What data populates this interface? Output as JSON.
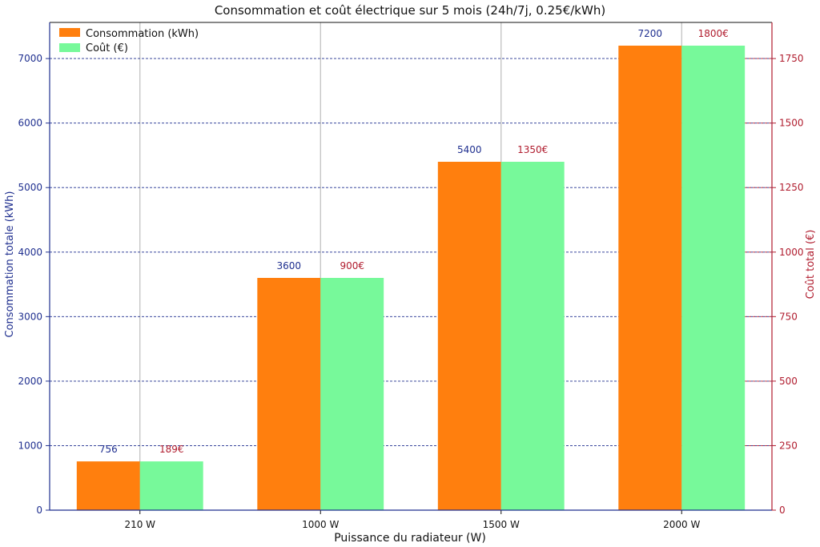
{
  "chart_data": {
    "type": "bar",
    "title": "Consommation et coût électrique sur 5 mois (24h/7j, 0.25€/kWh)",
    "xlabel": "Puissance du radiateur (W)",
    "ylabel_left": "Consommation totale (kWh)",
    "ylabel_right": "Coût total (€)",
    "categories": [
      "210 W",
      "1000 W",
      "1500 W",
      "2000 W"
    ],
    "series": [
      {
        "name": "Consommation (kWh)",
        "axis": "left",
        "color": "#ff7f0e",
        "values": [
          756,
          3600,
          5400,
          7200
        ],
        "labels": [
          "756",
          "3600",
          "5400",
          "7200"
        ]
      },
      {
        "name": "Coût (€)",
        "axis": "right",
        "color": "#77f99a",
        "values": [
          189,
          900,
          1350,
          1800
        ],
        "labels": [
          "189€",
          "900€",
          "1350€",
          "1800€"
        ]
      }
    ],
    "ylim_left": [
      0,
      7560
    ],
    "ylim_right": [
      0,
      1890
    ],
    "yticks_left": [
      "0",
      "1000",
      "2000",
      "3000",
      "4000",
      "5000",
      "6000",
      "7000"
    ],
    "yticks_right": [
      "0",
      "250",
      "500",
      "750",
      "1000",
      "1250",
      "1500",
      "1750"
    ],
    "left_axis_color": "#1f2f8f",
    "right_axis_color": "#b01c2e",
    "grid": true,
    "legend_position": "top-left"
  }
}
